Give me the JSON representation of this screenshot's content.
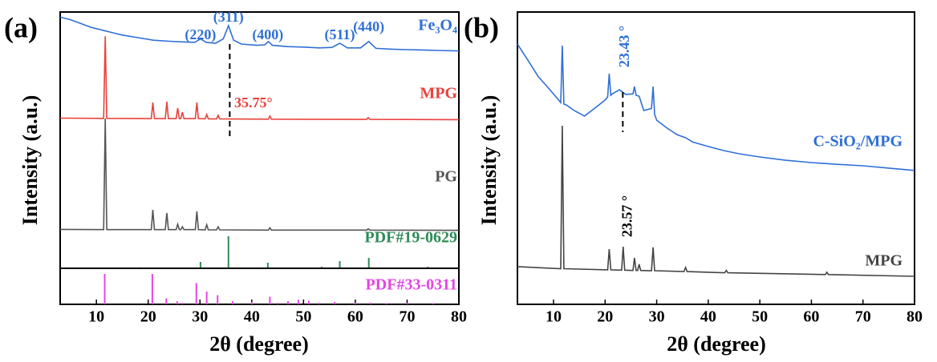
{
  "chart_data": [
    {
      "type": "line",
      "panel_label": "(a)",
      "ylabel": "Intensity (a.u.)",
      "xlim": [
        3,
        80
      ],
      "ylim": [
        0,
        100
      ],
      "series": [
        {
          "name": "Fe₃O₄",
          "color": "#2f6fd6",
          "x": [
            3,
            5,
            7,
            9,
            11,
            13,
            15,
            18,
            21,
            24,
            27,
            29,
            30.1,
            31.2,
            33,
            34.5,
            35.5,
            36.5,
            38,
            41,
            42.5,
            43.2,
            44,
            47,
            50,
            53,
            55.5,
            57,
            58.5,
            61,
            62.6,
            64,
            67,
            70,
            73,
            76,
            80
          ],
          "values": [
            98,
            97,
            95.5,
            94,
            93,
            92,
            91,
            90,
            89,
            88.6,
            88.3,
            88.2,
            89.5,
            88.2,
            87.8,
            89.5,
            94.7,
            89,
            87.5,
            87,
            87.2,
            88.5,
            87,
            86.5,
            86.3,
            86,
            86.2,
            87.8,
            86,
            86,
            88.5,
            85.8,
            85.5,
            85.3,
            85.2,
            85,
            84.8
          ]
        },
        {
          "name": "MPG",
          "color": "#e8413c",
          "x": [
            3,
            11.4,
            11.7,
            12,
            20.6,
            20.9,
            21.2,
            23.3,
            23.6,
            23.9,
            25.4,
            25.7,
            26,
            26.3,
            26.6,
            26.9,
            29.1,
            29.4,
            29.7,
            31,
            31.3,
            31.6,
            33.2,
            33.5,
            33.8,
            43.2,
            43.5,
            43.8,
            62.2,
            62.5,
            62.8,
            80
          ],
          "values": [
            58.6,
            58.5,
            90.6,
            58.5,
            58.4,
            64.7,
            58.4,
            58.4,
            65,
            58.4,
            58.4,
            62.5,
            58.4,
            58.4,
            60.9,
            58.4,
            58.4,
            64.7,
            58.4,
            58.3,
            60,
            58.3,
            58.3,
            59.7,
            58.3,
            58.2,
            59.4,
            58.2,
            58.1,
            58.8,
            58.1,
            58
          ]
        },
        {
          "name": "PG",
          "color": "#555555",
          "x": [
            3,
            11.4,
            11.7,
            12,
            20.6,
            20.9,
            21.2,
            23.3,
            23.6,
            23.9,
            25.4,
            25.7,
            26,
            26.3,
            26.6,
            26.9,
            29.1,
            29.4,
            29.7,
            31,
            31.3,
            31.6,
            33.2,
            33.5,
            33.8,
            43.2,
            43.5,
            43.8,
            62.2,
            62.5,
            62.8,
            80
          ],
          "values": [
            15.2,
            15.1,
            58.4,
            15.1,
            15.1,
            22.8,
            15.1,
            15.1,
            21.6,
            15.1,
            15.1,
            17.2,
            15.1,
            15.1,
            16.2,
            15.1,
            15.1,
            22.2,
            15.1,
            15,
            17,
            15,
            15,
            16.2,
            15,
            14.9,
            15.8,
            14.9,
            14.9,
            15.4,
            14.9,
            14.8
          ]
        }
      ],
      "annotations": [
        {
          "text": "(220)",
          "x": 30.1
        },
        {
          "text": "(311)",
          "x": 35.5
        },
        {
          "text": "(400)",
          "x": 43.1
        },
        {
          "text": "(511)",
          "x": 57
        },
        {
          "text": "(440)",
          "x": 62.6
        }
      ],
      "markers": [
        {
          "label": "35.75°",
          "x": 35.75
        }
      ]
    },
    {
      "type": "stick",
      "xlim": [
        3,
        80
      ],
      "ylim": [
        0,
        100
      ],
      "series": [
        {
          "name": "PDF#19-0629",
          "color": "#2e8b57",
          "x": [
            18.3,
            30.1,
            35.5,
            43.1,
            53.5,
            57,
            62.6,
            74
          ],
          "values": [
            3,
            20,
            100,
            17.5,
            5,
            22.5,
            32.5,
            5
          ]
        }
      ]
    },
    {
      "type": "stick",
      "xlabel": "2θ (degree)",
      "xlim": [
        3,
        80
      ],
      "ylim": [
        0,
        100
      ],
      "xticks": [
        10,
        20,
        30,
        40,
        50,
        60,
        70,
        80
      ],
      "series": [
        {
          "name": "PDF#33-0311",
          "color": "#e545e5",
          "x": [
            11.6,
            20.8,
            23.5,
            25.6,
            26.6,
            29.3,
            31.3,
            33.4,
            36.3,
            40,
            43.5,
            45,
            47,
            49,
            51,
            53,
            56,
            60,
            63,
            66,
            70,
            75
          ],
          "values": [
            100,
            100,
            20,
            10,
            5,
            70,
            42,
            30,
            10,
            8,
            25,
            5,
            10,
            15,
            12,
            5,
            8,
            5,
            6,
            4,
            4,
            4
          ]
        }
      ]
    },
    {
      "type": "line",
      "panel_label": "(b)",
      "xlabel": "2θ (degree)",
      "ylabel": "Intensity (a.u.)",
      "xlim": [
        3,
        80
      ],
      "ylim": [
        0,
        100
      ],
      "xticks": [
        10,
        20,
        30,
        40,
        50,
        60,
        70,
        80
      ],
      "series": [
        {
          "name": "C-SiO₂/MPG",
          "color": "#2f6fd6",
          "x": [
            3,
            5,
            7,
            9,
            11,
            11.4,
            11.7,
            12,
            12.5,
            14,
            16,
            18,
            20,
            20.5,
            20.8,
            21.1,
            21.5,
            22.8,
            24,
            25.4,
            25.7,
            26,
            26.6,
            27.5,
            29,
            29.3,
            29.6,
            30,
            32,
            34,
            35.6,
            37,
            40,
            43,
            46,
            50,
            55,
            60,
            65,
            70,
            75,
            80
          ],
          "values": [
            89,
            83.6,
            78,
            74,
            69.9,
            69,
            88.5,
            68.5,
            68.2,
            66.3,
            64.4,
            67.1,
            69.9,
            71,
            78.9,
            71.5,
            72.1,
            73.4,
            71.8,
            72,
            74.5,
            71.5,
            71.2,
            66.3,
            67,
            74.5,
            65,
            63,
            60.3,
            58,
            57,
            55.5,
            54,
            52.6,
            51.5,
            50.4,
            49.3,
            48.5,
            47.9,
            47.4,
            46.6,
            45.8
          ]
        },
        {
          "name": "MPG",
          "color": "#444444",
          "x": [
            3,
            11.4,
            11.7,
            12,
            20.5,
            20.8,
            21.1,
            23.2,
            23.5,
            23.8,
            25.4,
            25.7,
            26,
            26.3,
            26.6,
            26.9,
            29,
            29.3,
            29.6,
            35.3,
            35.6,
            35.9,
            43.2,
            43.5,
            43.8,
            62.7,
            63,
            63.3,
            80
          ],
          "values": [
            12.9,
            12.2,
            61.1,
            12.2,
            11.8,
            18.9,
            11.8,
            11.7,
            19.7,
            11.7,
            11.6,
            15.9,
            11.6,
            11.6,
            13.7,
            11.6,
            11.5,
            19.5,
            11.5,
            11.2,
            12.6,
            11.2,
            10.8,
            11.6,
            10.8,
            10.2,
            11,
            10.2,
            9.6
          ]
        }
      ],
      "annotations": [
        {
          "text": "23.57 °",
          "x": 23.57
        }
      ],
      "markers": [
        {
          "label": "23.43 °",
          "x": 23.43
        }
      ]
    }
  ]
}
